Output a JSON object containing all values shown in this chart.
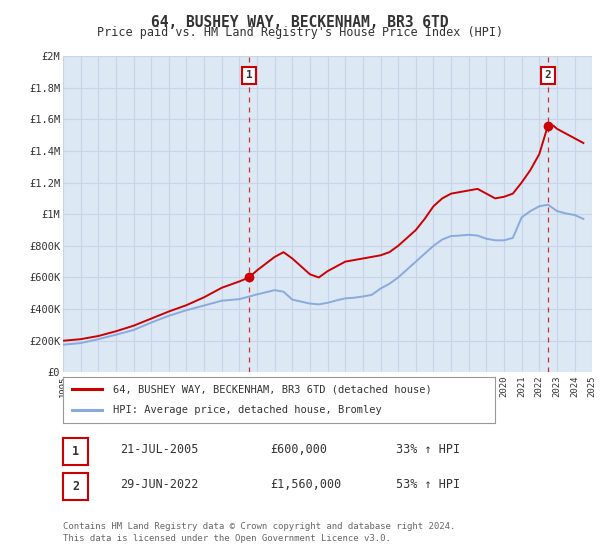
{
  "title": "64, BUSHEY WAY, BECKENHAM, BR3 6TD",
  "subtitle": "Price paid vs. HM Land Registry's House Price Index (HPI)",
  "fig_bg_color": "#ffffff",
  "plot_bg_color": "#dde8f5",
  "grid_color": "#c8d4e8",
  "red_line_color": "#cc0000",
  "blue_line_color": "#88aadd",
  "sale1_x": 2005.55,
  "sale1_y": 600000,
  "sale1_label": "1",
  "sale1_date": "21-JUL-2005",
  "sale1_price": "£600,000",
  "sale1_hpi": "33% ↑ HPI",
  "sale2_x": 2022.49,
  "sale2_y": 1560000,
  "sale2_label": "2",
  "sale2_date": "29-JUN-2022",
  "sale2_price": "£1,560,000",
  "sale2_hpi": "53% ↑ HPI",
  "xmin": 1995,
  "xmax": 2025,
  "ymin": 0,
  "ymax": 2000000,
  "yticks": [
    0,
    200000,
    400000,
    600000,
    800000,
    1000000,
    1200000,
    1400000,
    1600000,
    1800000,
    2000000
  ],
  "ytick_labels": [
    "£0",
    "£200K",
    "£400K",
    "£600K",
    "£800K",
    "£1M",
    "£1.2M",
    "£1.4M",
    "£1.6M",
    "£1.8M",
    "£2M"
  ],
  "legend_label_red": "64, BUSHEY WAY, BECKENHAM, BR3 6TD (detached house)",
  "legend_label_blue": "HPI: Average price, detached house, Bromley",
  "footer1": "Contains HM Land Registry data © Crown copyright and database right 2024.",
  "footer2": "This data is licensed under the Open Government Licence v3.0.",
  "red_years": [
    1995,
    1996,
    1997,
    1998,
    1999,
    2000,
    2001,
    2002,
    2003,
    2004,
    2005,
    2005.55,
    2006,
    2007,
    2007.5,
    2008,
    2009,
    2009.5,
    2010,
    2010.5,
    2011,
    2011.5,
    2012,
    2012.5,
    2013,
    2013.5,
    2014,
    2014.5,
    2015,
    2015.5,
    2016,
    2016.5,
    2017,
    2017.5,
    2018,
    2018.5,
    2019,
    2019.5,
    2020,
    2020.5,
    2021,
    2021.5,
    2022,
    2022.49,
    2022.8,
    2023,
    2023.5,
    2024,
    2024.5
  ],
  "red_values": [
    200000,
    210000,
    230000,
    260000,
    295000,
    340000,
    385000,
    425000,
    475000,
    535000,
    575000,
    600000,
    645000,
    730000,
    760000,
    720000,
    620000,
    600000,
    640000,
    670000,
    700000,
    710000,
    720000,
    730000,
    740000,
    760000,
    800000,
    850000,
    900000,
    970000,
    1050000,
    1100000,
    1130000,
    1140000,
    1150000,
    1160000,
    1130000,
    1100000,
    1110000,
    1130000,
    1200000,
    1280000,
    1380000,
    1560000,
    1560000,
    1540000,
    1510000,
    1480000,
    1450000
  ],
  "blue_years": [
    1995,
    1996,
    1997,
    1998,
    1999,
    2000,
    2001,
    2002,
    2003,
    2004,
    2005,
    2006,
    2007,
    2007.5,
    2008,
    2009,
    2009.5,
    2010,
    2010.5,
    2011,
    2011.5,
    2012,
    2012.5,
    2013,
    2013.5,
    2014,
    2014.5,
    2015,
    2015.5,
    2016,
    2016.5,
    2017,
    2017.5,
    2018,
    2018.5,
    2019,
    2019.5,
    2020,
    2020.5,
    2021,
    2021.5,
    2022,
    2022.5,
    2023,
    2023.5,
    2024,
    2024.5
  ],
  "blue_values": [
    175000,
    185000,
    210000,
    238000,
    268000,
    315000,
    358000,
    393000,
    423000,
    453000,
    463000,
    493000,
    520000,
    510000,
    460000,
    435000,
    430000,
    440000,
    455000,
    468000,
    472000,
    480000,
    490000,
    530000,
    560000,
    600000,
    650000,
    700000,
    750000,
    800000,
    840000,
    862000,
    865000,
    870000,
    865000,
    845000,
    835000,
    835000,
    850000,
    980000,
    1020000,
    1050000,
    1060000,
    1020000,
    1005000,
    995000,
    970000
  ]
}
